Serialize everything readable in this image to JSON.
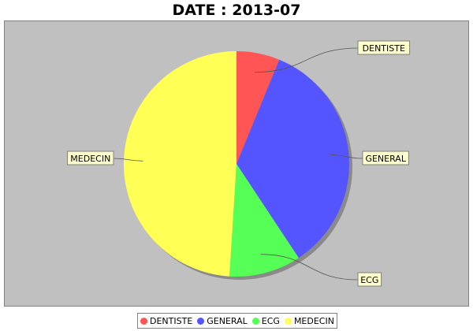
{
  "chart_data": {
    "type": "pie",
    "title": "DATE : 2013-07",
    "slices": [
      {
        "label": "DENTISTE",
        "value": 6.2,
        "color": "#ff5555"
      },
      {
        "label": "GENERAL",
        "value": 34.5,
        "color": "#5555ff"
      },
      {
        "label": "ECG",
        "value": 10.3,
        "color": "#55ff55"
      },
      {
        "label": "MEDECIN",
        "value": 49.0,
        "color": "#ffff55"
      }
    ],
    "background": "#c0c0c0",
    "label_box_color": "#ffffcc",
    "legend_position": "bottom",
    "legend": [
      "DENTISTE",
      "GENERAL",
      "ECG",
      "MEDECIN"
    ]
  }
}
